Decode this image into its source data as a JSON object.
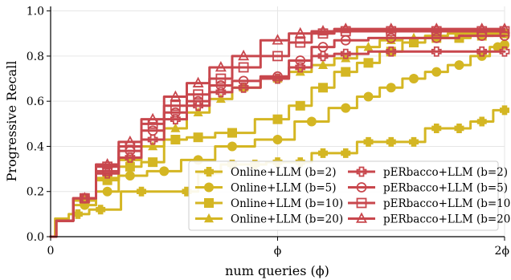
{
  "chart_data": {
    "type": "line",
    "xlabel": "num queries (ϕ)",
    "ylabel": "Progressive Recall",
    "xlim": [
      0,
      2
    ],
    "ylim": [
      0,
      1.02
    ],
    "xticks": [
      {
        "value": 0,
        "label": "0"
      },
      {
        "value": 1,
        "label": "ϕ"
      },
      {
        "value": 2,
        "label": "2ϕ"
      }
    ],
    "yticks": [
      {
        "value": 0.0,
        "label": "0.0"
      },
      {
        "value": 0.2,
        "label": "0.2"
      },
      {
        "value": 0.4,
        "label": "0.4"
      },
      {
        "value": 0.6,
        "label": "0.6"
      },
      {
        "value": 0.8,
        "label": "0.8"
      },
      {
        "value": 1.0,
        "label": "1.0"
      }
    ],
    "grid": true,
    "legend": {
      "placement": "bottom-right",
      "columns": 2
    },
    "series": [
      {
        "name": "Online+LLM (b=2)",
        "color": "#d4b623",
        "marker": "plus",
        "x": [
          0,
          0.04,
          0.12,
          0.22,
          0.4,
          0.6,
          0.7,
          0.8,
          0.9,
          1.0,
          1.1,
          1.2,
          1.3,
          1.4,
          1.5,
          1.6,
          1.7,
          1.8,
          1.9,
          2.0
        ],
        "y": [
          0,
          0.08,
          0.1,
          0.12,
          0.2,
          0.2,
          0.28,
          0.32,
          0.32,
          0.33,
          0.33,
          0.37,
          0.37,
          0.42,
          0.42,
          0.42,
          0.48,
          0.48,
          0.51,
          0.56
        ]
      },
      {
        "name": "Online+LLM (b=5)",
        "color": "#d4b623",
        "marker": "circle",
        "x": [
          0,
          0.05,
          0.15,
          0.25,
          0.35,
          0.5,
          0.65,
          0.8,
          1.0,
          1.15,
          1.3,
          1.4,
          1.5,
          1.6,
          1.7,
          1.8,
          1.9,
          1.97,
          2.0
        ],
        "y": [
          0,
          0.07,
          0.14,
          0.2,
          0.27,
          0.29,
          0.34,
          0.4,
          0.43,
          0.51,
          0.57,
          0.62,
          0.66,
          0.7,
          0.73,
          0.76,
          0.8,
          0.84,
          0.85
        ]
      },
      {
        "name": "Online+LLM (b=10)",
        "color": "#d4b623",
        "marker": "square",
        "x": [
          0,
          0.05,
          0.15,
          0.25,
          0.35,
          0.45,
          0.55,
          0.65,
          0.8,
          1.0,
          1.1,
          1.2,
          1.3,
          1.4,
          1.5,
          1.6,
          1.7,
          1.8,
          1.9,
          2.0
        ],
        "y": [
          0,
          0.07,
          0.16,
          0.25,
          0.31,
          0.33,
          0.43,
          0.44,
          0.46,
          0.52,
          0.58,
          0.66,
          0.73,
          0.77,
          0.82,
          0.86,
          0.88,
          0.88,
          0.89,
          0.9
        ]
      },
      {
        "name": "Online+LLM (b=20)",
        "color": "#d4b623",
        "marker": "triangle",
        "x": [
          0,
          0.05,
          0.15,
          0.25,
          0.35,
          0.45,
          0.55,
          0.65,
          0.75,
          0.85,
          1.0,
          1.1,
          1.2,
          1.3,
          1.4,
          1.5,
          1.6,
          1.7,
          1.8,
          1.9,
          2.0
        ],
        "y": [
          0,
          0.07,
          0.17,
          0.26,
          0.34,
          0.4,
          0.48,
          0.55,
          0.61,
          0.66,
          0.7,
          0.73,
          0.76,
          0.79,
          0.84,
          0.87,
          0.88,
          0.89,
          0.9,
          0.9,
          0.9
        ]
      },
      {
        "name": "pERbacco+LLM (b=2)",
        "color": "#c8474d",
        "marker": "plus",
        "x": [
          0,
          0.05,
          0.15,
          0.25,
          0.35,
          0.45,
          0.55,
          0.65,
          0.75,
          0.85,
          1.0,
          1.1,
          1.2,
          1.3,
          1.5,
          1.7,
          1.9,
          2.0
        ],
        "y": [
          0,
          0.07,
          0.17,
          0.28,
          0.35,
          0.43,
          0.52,
          0.58,
          0.64,
          0.66,
          0.7,
          0.75,
          0.8,
          0.81,
          0.82,
          0.82,
          0.82,
          0.82
        ]
      },
      {
        "name": "pERbacco+LLM (b=5)",
        "color": "#c8474d",
        "marker": "circle",
        "x": [
          0,
          0.05,
          0.15,
          0.25,
          0.35,
          0.45,
          0.55,
          0.65,
          0.75,
          0.85,
          1.0,
          1.1,
          1.2,
          1.3,
          1.5,
          1.7,
          1.9,
          2.0
        ],
        "y": [
          0,
          0.07,
          0.17,
          0.29,
          0.38,
          0.47,
          0.55,
          0.6,
          0.67,
          0.69,
          0.71,
          0.78,
          0.84,
          0.87,
          0.88,
          0.88,
          0.89,
          0.89
        ]
      },
      {
        "name": "pERbacco+LLM (b=10)",
        "color": "#c8474d",
        "marker": "square",
        "x": [
          0,
          0.05,
          0.15,
          0.25,
          0.35,
          0.45,
          0.55,
          0.65,
          0.75,
          0.85,
          1.0,
          1.1,
          1.2,
          1.3,
          1.5,
          1.7,
          1.9,
          2.0
        ],
        "y": [
          0,
          0.07,
          0.17,
          0.31,
          0.4,
          0.5,
          0.58,
          0.63,
          0.7,
          0.75,
          0.8,
          0.86,
          0.9,
          0.91,
          0.91,
          0.91,
          0.91,
          0.91
        ]
      },
      {
        "name": "pERbacco+LLM (b=20)",
        "color": "#c8474d",
        "marker": "triangle",
        "x": [
          0,
          0.05,
          0.15,
          0.25,
          0.35,
          0.45,
          0.55,
          0.65,
          0.75,
          0.85,
          1.0,
          1.1,
          1.2,
          1.3,
          1.5,
          1.7,
          1.9,
          2.0
        ],
        "y": [
          0,
          0.07,
          0.17,
          0.32,
          0.42,
          0.52,
          0.62,
          0.68,
          0.75,
          0.8,
          0.87,
          0.9,
          0.91,
          0.92,
          0.92,
          0.92,
          0.92,
          0.92
        ]
      }
    ]
  }
}
